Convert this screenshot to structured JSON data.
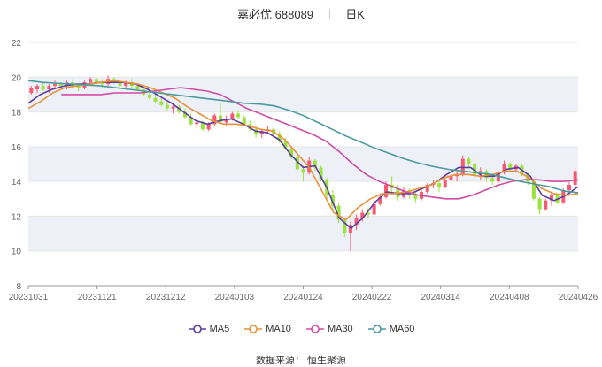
{
  "header": {
    "stock_name": "嘉必优",
    "stock_code": "688089",
    "period": "日K"
  },
  "footer": {
    "source_label": "数据来源：",
    "source_name": "恒生聚源"
  },
  "colors": {
    "up": "#f45a70",
    "down": "#9be33c",
    "ma5": "#5c3c9e",
    "ma10": "#e8913a",
    "ma30": "#d24ba3",
    "ma60": "#4a9a9e",
    "band": "#eef0f8",
    "grid": "#e6e6e6"
  },
  "chart_data": {
    "type": "candlestick",
    "title": "",
    "xlabel": "",
    "ylabel": "",
    "ylim": [
      8,
      22
    ],
    "yticks": [
      8,
      10,
      12,
      14,
      16,
      18,
      20,
      22
    ],
    "xticks": [
      "20231031",
      "20231121",
      "20231212",
      "20240103",
      "20240124",
      "20240222",
      "20240314",
      "20240408",
      "20240426"
    ],
    "legend": [
      "MA5",
      "MA10",
      "MA30",
      "MA60"
    ],
    "legend_position": "bottom",
    "candles_ohlc": [
      [
        19.1,
        19.5,
        19.0,
        19.4
      ],
      [
        19.3,
        19.6,
        19.1,
        19.5
      ],
      [
        19.5,
        19.7,
        19.2,
        19.3
      ],
      [
        19.3,
        19.6,
        19.1,
        19.5
      ],
      [
        19.5,
        19.8,
        19.3,
        19.6
      ],
      [
        19.6,
        19.7,
        19.4,
        19.5
      ],
      [
        19.5,
        19.8,
        19.3,
        19.7
      ],
      [
        19.7,
        19.9,
        19.4,
        19.5
      ],
      [
        19.5,
        19.6,
        19.2,
        19.4
      ],
      [
        19.4,
        19.8,
        19.3,
        19.7
      ],
      [
        19.7,
        20.0,
        19.6,
        19.9
      ],
      [
        19.9,
        20.0,
        19.6,
        19.7
      ],
      [
        19.7,
        19.9,
        19.4,
        19.6
      ],
      [
        19.6,
        20.1,
        19.5,
        19.9
      ],
      [
        19.9,
        20.0,
        19.6,
        19.7
      ],
      [
        19.7,
        19.8,
        19.4,
        19.5
      ],
      [
        19.5,
        19.8,
        19.4,
        19.7
      ],
      [
        19.7,
        19.9,
        19.4,
        19.5
      ],
      [
        19.5,
        19.6,
        19.2,
        19.3
      ],
      [
        19.3,
        19.5,
        18.9,
        19.0
      ],
      [
        19.0,
        19.2,
        18.7,
        18.8
      ],
      [
        18.8,
        19.0,
        18.5,
        18.6
      ],
      [
        18.6,
        18.8,
        18.3,
        18.4
      ],
      [
        18.4,
        18.6,
        18.1,
        18.2
      ],
      [
        18.2,
        18.5,
        17.9,
        18.3
      ],
      [
        18.3,
        18.4,
        17.9,
        18.0
      ],
      [
        18.0,
        18.2,
        17.6,
        17.7
      ],
      [
        17.7,
        17.9,
        17.2,
        17.3
      ],
      [
        17.3,
        17.6,
        17.0,
        17.4
      ],
      [
        17.4,
        17.5,
        16.9,
        17.0
      ],
      [
        17.0,
        17.4,
        16.9,
        17.3
      ],
      [
        17.3,
        17.9,
        17.2,
        17.8
      ],
      [
        17.8,
        18.5,
        17.6,
        17.4
      ],
      [
        17.4,
        17.8,
        17.2,
        17.6
      ],
      [
        17.6,
        18.0,
        17.5,
        17.9
      ],
      [
        17.9,
        18.1,
        17.6,
        17.7
      ],
      [
        17.7,
        17.8,
        17.2,
        17.3
      ],
      [
        17.3,
        17.5,
        16.9,
        17.0
      ],
      [
        17.0,
        17.2,
        16.5,
        16.7
      ],
      [
        16.7,
        17.0,
        16.5,
        16.9
      ],
      [
        16.9,
        17.2,
        16.7,
        17.0
      ],
      [
        17.0,
        17.1,
        16.6,
        16.7
      ],
      [
        16.7,
        16.9,
        16.2,
        16.3
      ],
      [
        16.3,
        16.5,
        15.8,
        15.9
      ],
      [
        15.9,
        16.0,
        15.3,
        15.4
      ],
      [
        15.4,
        15.5,
        14.6,
        14.7
      ],
      [
        14.7,
        14.9,
        14.0,
        14.5
      ],
      [
        14.5,
        15.4,
        14.4,
        15.2
      ],
      [
        15.2,
        15.3,
        14.6,
        14.8
      ],
      [
        14.8,
        14.9,
        14.0,
        14.1
      ],
      [
        14.1,
        14.2,
        13.0,
        13.2
      ],
      [
        13.2,
        13.5,
        12.4,
        12.6
      ],
      [
        12.6,
        12.8,
        11.6,
        11.8
      ],
      [
        11.8,
        11.9,
        10.8,
        11.0
      ],
      [
        11.0,
        11.7,
        10.0,
        11.5
      ],
      [
        11.5,
        12.1,
        11.2,
        11.9
      ],
      [
        11.9,
        12.4,
        11.7,
        12.2
      ],
      [
        12.2,
        12.5,
        11.9,
        12.1
      ],
      [
        12.1,
        12.9,
        12.0,
        12.7
      ],
      [
        12.7,
        13.3,
        12.6,
        13.1
      ],
      [
        13.1,
        14.0,
        13.0,
        13.8
      ],
      [
        13.8,
        14.3,
        13.4,
        13.6
      ],
      [
        13.6,
        13.8,
        12.9,
        13.1
      ],
      [
        13.1,
        13.7,
        13.0,
        13.5
      ],
      [
        13.5,
        13.6,
        13.0,
        13.2
      ],
      [
        13.2,
        13.4,
        12.8,
        13.0
      ],
      [
        13.0,
        13.5,
        12.9,
        13.4
      ],
      [
        13.4,
        13.9,
        13.3,
        13.8
      ],
      [
        13.8,
        14.1,
        13.6,
        13.9
      ],
      [
        13.9,
        14.0,
        13.4,
        13.7
      ],
      [
        13.7,
        14.2,
        13.6,
        14.1
      ],
      [
        14.1,
        14.4,
        13.9,
        14.3
      ],
      [
        14.3,
        14.6,
        14.0,
        14.4
      ],
      [
        14.4,
        15.5,
        14.3,
        15.3
      ],
      [
        15.3,
        15.4,
        14.8,
        15.0
      ],
      [
        15.0,
        15.1,
        14.2,
        14.4
      ],
      [
        14.4,
        14.8,
        14.1,
        14.6
      ],
      [
        14.6,
        14.7,
        14.0,
        14.2
      ],
      [
        14.2,
        14.3,
        13.8,
        14.0
      ],
      [
        14.0,
        14.6,
        13.9,
        14.5
      ],
      [
        14.5,
        15.2,
        14.4,
        15.0
      ],
      [
        15.0,
        15.1,
        14.5,
        14.7
      ],
      [
        14.7,
        15.0,
        14.5,
        14.9
      ],
      [
        14.9,
        15.0,
        14.3,
        14.4
      ],
      [
        14.4,
        14.5,
        13.8,
        14.0
      ],
      [
        14.0,
        14.1,
        12.9,
        13.0
      ],
      [
        13.0,
        13.1,
        12.1,
        12.4
      ],
      [
        12.4,
        13.0,
        12.3,
        12.9
      ],
      [
        12.9,
        13.4,
        12.6,
        13.2
      ],
      [
        13.2,
        13.3,
        12.7,
        12.8
      ],
      [
        12.8,
        13.6,
        12.7,
        13.5
      ],
      [
        13.5,
        14.0,
        13.3,
        13.8
      ],
      [
        13.8,
        14.8,
        13.7,
        14.6
      ]
    ],
    "series": [
      {
        "name": "MA5",
        "values": [
          18.5,
          19.0,
          19.3,
          19.5,
          19.6,
          19.6,
          19.7,
          19.7,
          19.7,
          19.6,
          19.3,
          18.9,
          18.5,
          18.0,
          17.5,
          17.3,
          17.5,
          17.6,
          17.3,
          16.9,
          16.8,
          16.4,
          15.5,
          14.8,
          14.9,
          13.6,
          11.9,
          11.3,
          11.9,
          12.8,
          13.4,
          13.3,
          13.3,
          13.6,
          13.9,
          14.4,
          14.8,
          14.8,
          14.3,
          14.3,
          14.7,
          14.8,
          14.3,
          13.2,
          12.9,
          13.2,
          13.7
        ]
      },
      {
        "name": "MA10",
        "values": [
          18.2,
          18.6,
          19.1,
          19.4,
          19.5,
          19.6,
          19.7,
          19.8,
          19.7,
          19.6,
          19.4,
          19.1,
          18.8,
          18.3,
          17.9,
          17.5,
          17.3,
          17.3,
          17.2,
          17.0,
          16.9,
          16.4,
          15.6,
          14.8,
          13.5,
          12.2,
          11.8,
          12.5,
          13.0,
          13.3,
          13.3,
          13.4,
          13.6,
          13.8,
          14.2,
          14.4,
          14.4,
          14.3,
          14.4,
          14.6,
          14.6,
          14.2,
          13.6,
          13.3,
          13.2,
          13.3
        ]
      },
      {
        "name": "MA30",
        "values": [
          19.0,
          19.0,
          19.0,
          19.0,
          19.1,
          19.1,
          19.1,
          19.2,
          19.3,
          19.4,
          19.3,
          19.2,
          19.0,
          18.6,
          18.2,
          17.9,
          17.6,
          17.3,
          17.0,
          16.7,
          16.3,
          15.7,
          15.0,
          14.4,
          14.0,
          13.7,
          13.4,
          13.2,
          13.1,
          13.0,
          13.0,
          13.2,
          13.5,
          13.8,
          14.0,
          14.1,
          14.1,
          14.0,
          14.0,
          14.1
        ]
      },
      {
        "name": "MA60",
        "values": [
          19.8,
          19.7,
          19.65,
          19.6,
          19.55,
          19.5,
          19.4,
          19.3,
          19.2,
          19.1,
          19.0,
          18.9,
          18.8,
          18.7,
          18.6,
          18.5,
          18.45,
          18.35,
          18.1,
          17.8,
          17.4,
          17.0,
          16.6,
          16.25,
          15.9,
          15.6,
          15.3,
          15.05,
          14.85,
          14.7,
          14.6,
          14.5,
          14.4,
          14.2,
          14.0,
          13.85,
          13.7,
          13.45,
          13.35
        ]
      }
    ]
  }
}
